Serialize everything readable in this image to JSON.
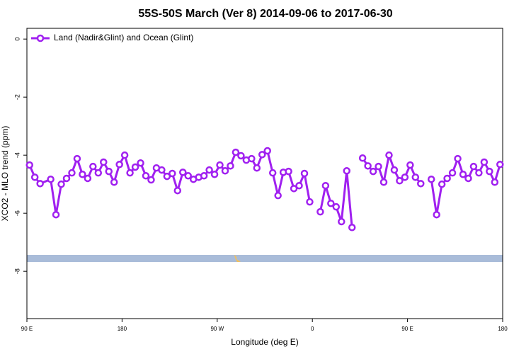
{
  "chart_data": {
    "type": "line",
    "title": "55S-50S March (Ver 8)   2014-09-06 to 2017-06-30",
    "x_label": "Longitude (deg E)",
    "y_label": "XCO2 - MLO trend (ppm)",
    "x": [
      92.5,
      97.5,
      102.5,
      112.5,
      117.5,
      122.5,
      127.5,
      132.5,
      137.5,
      142.5,
      147.5,
      152.5,
      157.5,
      162.5,
      167.5,
      172.5,
      177.5,
      182.5,
      187.5,
      192.5,
      197.5,
      202.5,
      207.5,
      212.5,
      217.5,
      222.5,
      227.5,
      232.5,
      237.5,
      242.5,
      247.5,
      252.5,
      257.5,
      262.5,
      267.5,
      272.5,
      277.5,
      282.5,
      287.5,
      292.5,
      297.5,
      302.5,
      307.5,
      312.5,
      317.5,
      322.5,
      327.5,
      332.5,
      337.5,
      342.5,
      347.5,
      352.5,
      357.5,
      362.5,
      367.5,
      372.5,
      377.5,
      382.5,
      387.5,
      392.5,
      397.5,
      402.5,
      407.5,
      412.5,
      417.5,
      422.5,
      427.5,
      432.5,
      437.5,
      442.5,
      447.5,
      452.5,
      457.5,
      462.5,
      467.5,
      472.5,
      477.5,
      482.5,
      487.5,
      492.5,
      497.5,
      502.5,
      507.5,
      512.5,
      517.5,
      522.5,
      527.5,
      532.5,
      537.5
    ],
    "series": [
      {
        "name": "Land (Nadir&Glint) and Ocean (Glint)",
        "color": "#a020f0",
        "values": [
          -4.34,
          -4.76,
          -4.98,
          -4.83,
          -6.05,
          -5.0,
          -4.8,
          -4.61,
          -4.12,
          -4.66,
          -4.8,
          -4.39,
          -4.61,
          -4.24,
          -4.56,
          -4.93,
          -4.32,
          -4.0,
          -4.61,
          -4.41,
          -4.27,
          -4.71,
          -4.85,
          -4.44,
          -4.51,
          -4.73,
          -4.63,
          -5.22,
          -4.59,
          -4.71,
          -4.83,
          -4.76,
          -4.71,
          -4.51,
          -4.66,
          -4.34,
          -4.54,
          -4.37,
          -3.9,
          -4.02,
          -4.17,
          -4.12,
          -4.44,
          -3.98,
          -3.85,
          -4.61,
          -5.39,
          -4.59,
          -4.56,
          -5.15,
          -5.05,
          -4.63,
          -5.61,
          null,
          -5.95,
          -5.05,
          -5.66,
          -5.78,
          -6.29,
          -4.54,
          -6.49,
          null,
          -4.1,
          -4.37,
          -4.56,
          -4.39,
          -4.93,
          -4.0,
          -4.51,
          -4.88,
          -4.76,
          -4.34,
          -4.76,
          -4.98,
          null,
          -4.83,
          -6.05,
          -5.0,
          -4.8,
          -4.61,
          -4.12,
          -4.66,
          -4.8,
          -4.39,
          -4.61,
          -4.24,
          -4.56,
          -4.93,
          -4.32
        ]
      }
    ],
    "xlim": [
      90,
      540
    ],
    "xticks": [
      {
        "value": 90,
        "label": "90 E"
      },
      {
        "value": 180,
        "label": "180"
      },
      {
        "value": 270,
        "label": "90 W"
      },
      {
        "value": 360,
        "label": "0"
      },
      {
        "value": 450,
        "label": "90 E"
      },
      {
        "value": 540,
        "label": "180"
      }
    ],
    "ylim": [
      -9.63,
      0.37
    ],
    "yticks": [
      0,
      -2,
      -4,
      -6,
      -8
    ],
    "legend": "top-left"
  }
}
